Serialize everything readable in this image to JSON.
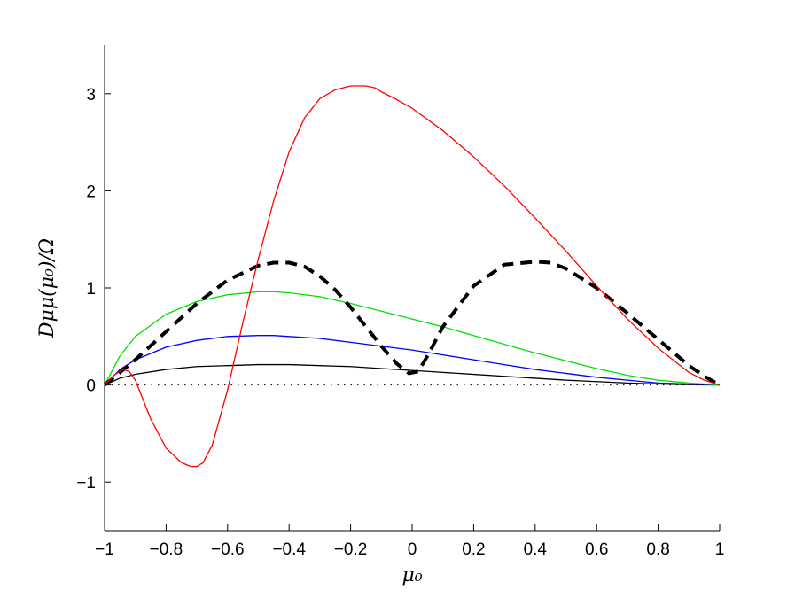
{
  "chart_data": {
    "type": "line",
    "xlabel": "μ₀",
    "ylabel": "Dμμ(μ₀)/Ω",
    "xlim": [
      -1,
      1
    ],
    "ylim": [
      -1.5,
      3.5
    ],
    "grid": false,
    "xticks": [
      -1,
      -0.8,
      -0.6,
      -0.4,
      -0.2,
      0,
      0.2,
      0.4,
      0.6,
      0.8,
      1
    ],
    "xtick_labels": [
      "−1",
      "−0.8",
      "−0.6",
      "−0.4",
      "−0.2",
      "0",
      "0.2",
      "0.4",
      "0.6",
      "0.8",
      "1"
    ],
    "yticks": [
      -1,
      0,
      1,
      2,
      3
    ],
    "ytick_labels": [
      "−1",
      "0",
      "1",
      "2",
      "3"
    ],
    "series": [
      {
        "color": "#ff0000",
        "style": "solid",
        "x": [
          -1,
          -0.97,
          -0.94,
          -0.92,
          -0.9,
          -0.85,
          -0.8,
          -0.75,
          -0.72,
          -0.7,
          -0.68,
          -0.65,
          -0.6,
          -0.55,
          -0.5,
          -0.45,
          -0.4,
          -0.35,
          -0.3,
          -0.25,
          -0.2,
          -0.15,
          -0.12,
          -0.1,
          -0.05,
          0,
          0.1,
          0.2,
          0.3,
          0.4,
          0.5,
          0.6,
          0.7,
          0.8,
          0.9,
          0.95,
          1
        ],
        "y": [
          0,
          0.1,
          0.16,
          0.14,
          0.05,
          -0.35,
          -0.65,
          -0.8,
          -0.84,
          -0.84,
          -0.8,
          -0.62,
          -0.05,
          0.65,
          1.3,
          1.9,
          2.4,
          2.75,
          2.95,
          3.04,
          3.08,
          3.08,
          3.06,
          3.02,
          2.94,
          2.85,
          2.62,
          2.35,
          2.05,
          1.72,
          1.38,
          1.02,
          0.68,
          0.38,
          0.13,
          0.05,
          0
        ]
      },
      {
        "color": "#00e000",
        "style": "solid",
        "x": [
          -1,
          -0.95,
          -0.9,
          -0.8,
          -0.7,
          -0.6,
          -0.5,
          -0.45,
          -0.4,
          -0.3,
          -0.2,
          -0.1,
          0,
          0.1,
          0.2,
          0.3,
          0.4,
          0.5,
          0.6,
          0.7,
          0.8,
          0.9,
          1
        ],
        "y": [
          0,
          0.3,
          0.5,
          0.73,
          0.86,
          0.93,
          0.96,
          0.96,
          0.95,
          0.91,
          0.84,
          0.76,
          0.68,
          0.6,
          0.51,
          0.42,
          0.33,
          0.25,
          0.17,
          0.1,
          0.05,
          0.02,
          0
        ]
      },
      {
        "color": "#0000ff",
        "style": "solid",
        "x": [
          -1,
          -0.95,
          -0.9,
          -0.8,
          -0.7,
          -0.6,
          -0.5,
          -0.45,
          -0.4,
          -0.3,
          -0.2,
          -0.1,
          0,
          0.1,
          0.2,
          0.3,
          0.4,
          0.5,
          0.6,
          0.7,
          0.8,
          0.9,
          1
        ],
        "y": [
          0,
          0.16,
          0.26,
          0.39,
          0.46,
          0.5,
          0.51,
          0.51,
          0.5,
          0.48,
          0.44,
          0.4,
          0.36,
          0.31,
          0.26,
          0.21,
          0.16,
          0.12,
          0.08,
          0.05,
          0.02,
          0.01,
          0
        ]
      },
      {
        "color": "#000000",
        "style": "solid",
        "x": [
          -1,
          -0.95,
          -0.9,
          -0.8,
          -0.7,
          -0.6,
          -0.5,
          -0.45,
          -0.4,
          -0.3,
          -0.2,
          -0.1,
          0,
          0.1,
          0.2,
          0.3,
          0.4,
          0.5,
          0.6,
          0.7,
          0.8,
          0.9,
          1
        ],
        "y": [
          0,
          0.07,
          0.11,
          0.16,
          0.19,
          0.2,
          0.21,
          0.21,
          0.21,
          0.2,
          0.19,
          0.17,
          0.15,
          0.13,
          0.11,
          0.09,
          0.07,
          0.05,
          0.035,
          0.02,
          0.01,
          0.003,
          0
        ]
      },
      {
        "color": "#000000",
        "style": "dashed",
        "x": [
          -1,
          -0.95,
          -0.9,
          -0.8,
          -0.7,
          -0.6,
          -0.5,
          -0.45,
          -0.4,
          -0.35,
          -0.3,
          -0.25,
          -0.2,
          -0.15,
          -0.1,
          -0.05,
          -0.01,
          0.02,
          0.05,
          0.1,
          0.2,
          0.3,
          0.4,
          0.45,
          0.5,
          0.6,
          0.7,
          0.8,
          0.9,
          0.95,
          1
        ],
        "y": [
          0,
          0.13,
          0.26,
          0.55,
          0.84,
          1.08,
          1.23,
          1.26,
          1.26,
          1.22,
          1.12,
          0.98,
          0.8,
          0.6,
          0.4,
          0.22,
          0.12,
          0.14,
          0.3,
          0.6,
          1.02,
          1.24,
          1.27,
          1.26,
          1.2,
          1.0,
          0.74,
          0.47,
          0.2,
          0.09,
          0
        ]
      },
      {
        "color": "#000000",
        "style": "dotted",
        "x": [
          -1,
          1
        ],
        "y": [
          0,
          0
        ]
      }
    ]
  }
}
